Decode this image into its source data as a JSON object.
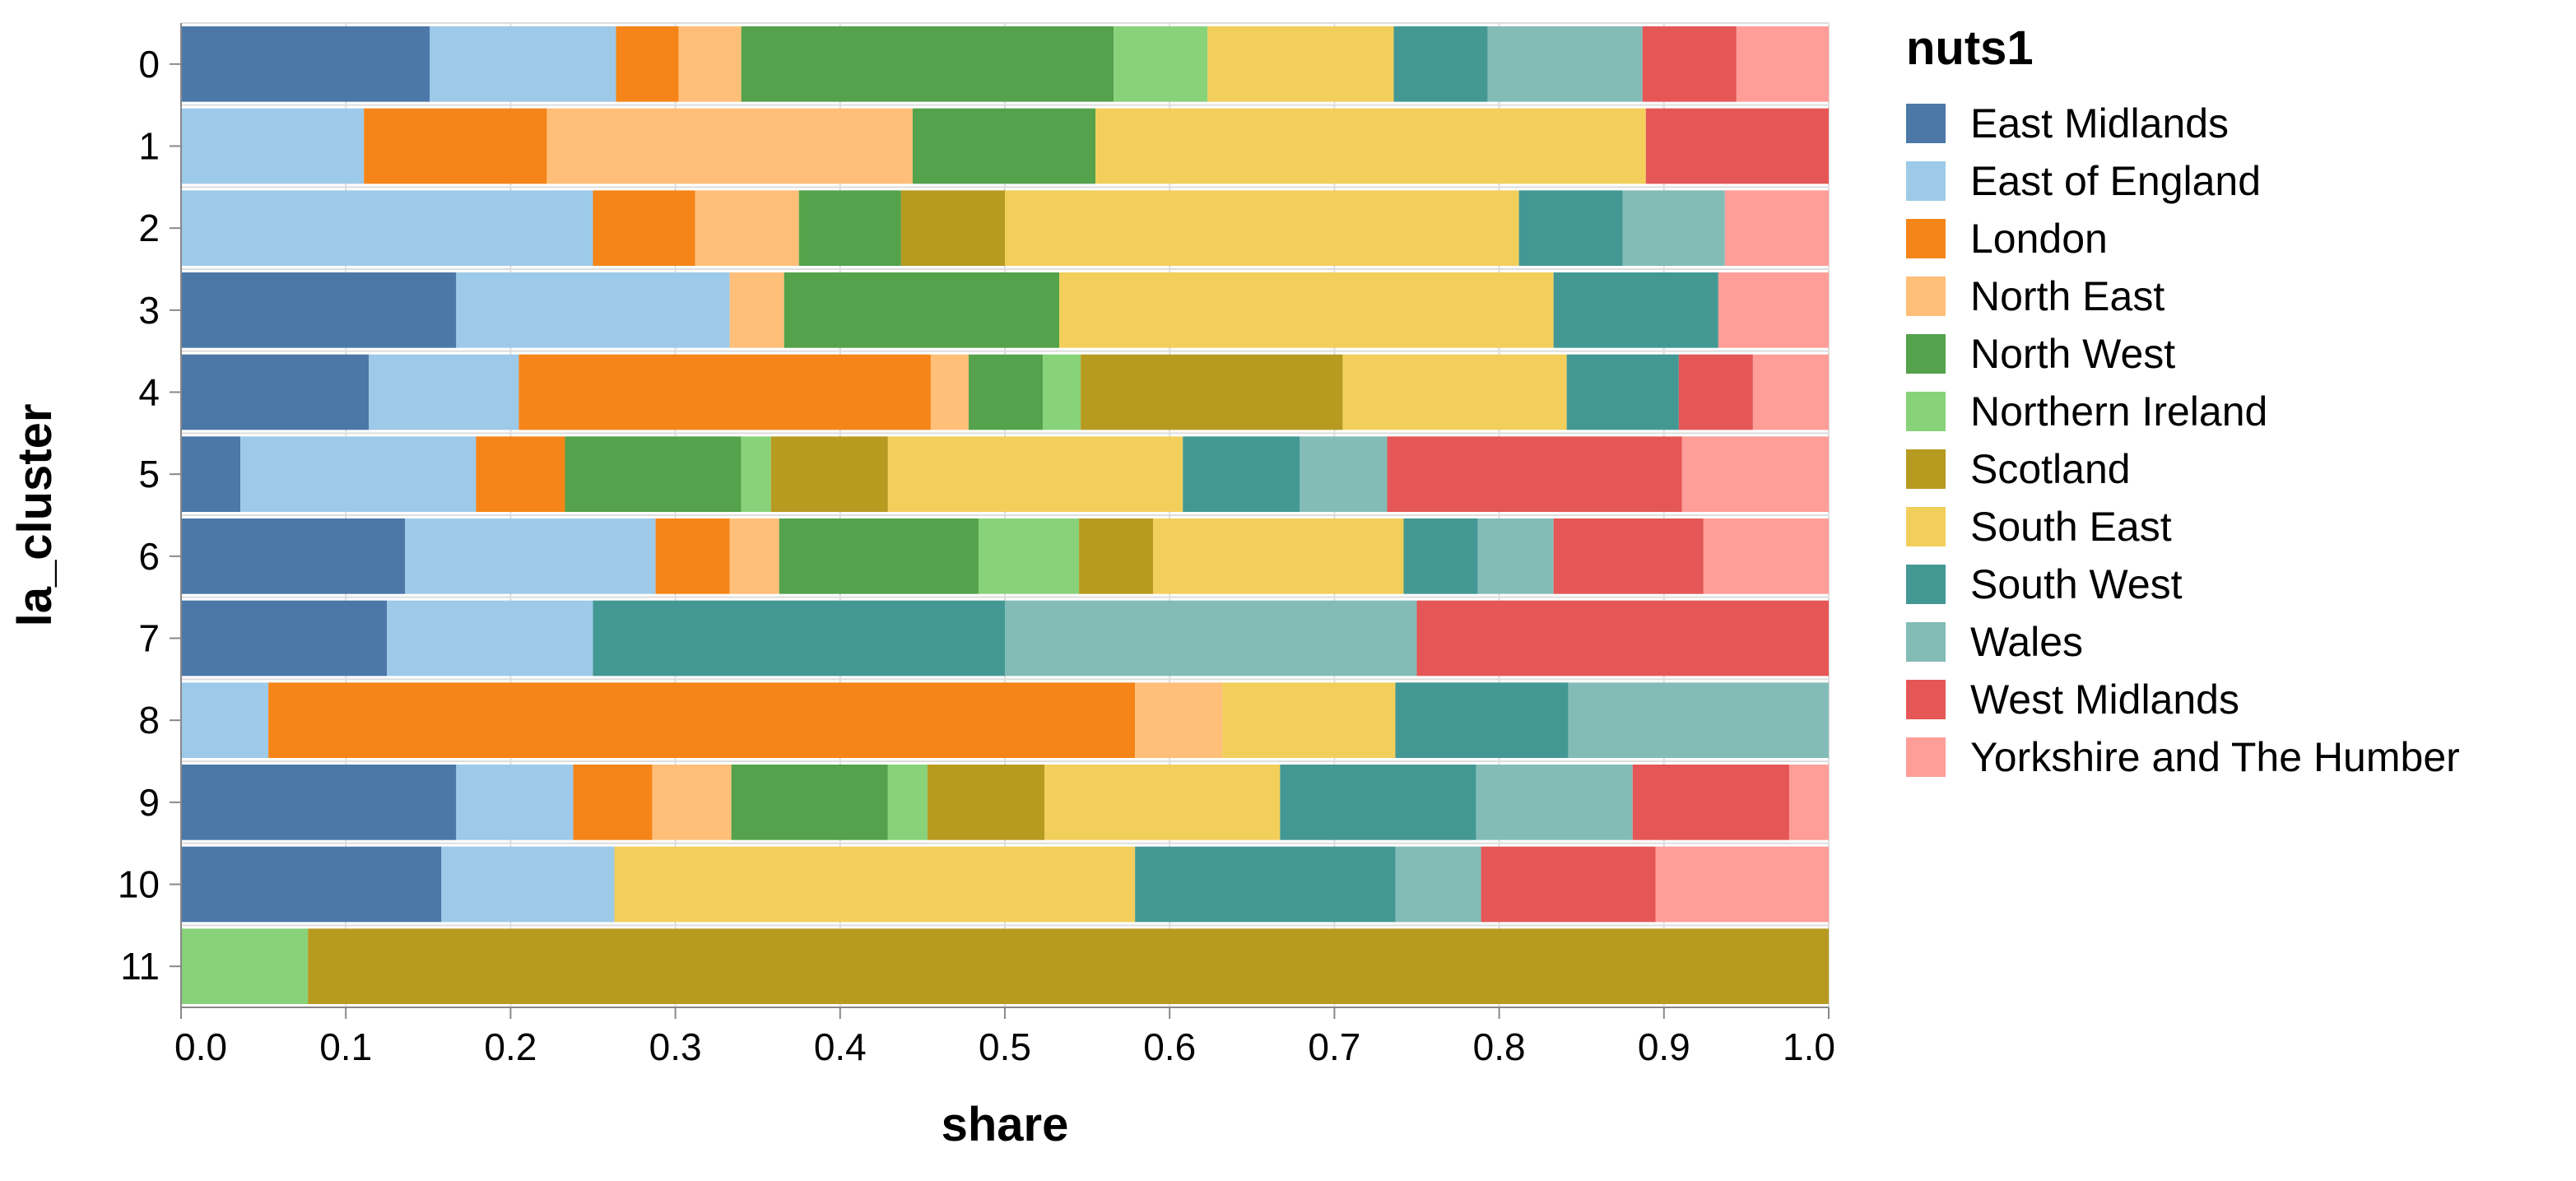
{
  "chart_data": {
    "type": "bar",
    "orientation": "horizontal",
    "stacked": true,
    "normalized": true,
    "xlabel": "share",
    "ylabel": "la_cluster",
    "xlim": [
      0,
      1
    ],
    "xticks": [
      "0.0",
      "0.1",
      "0.2",
      "0.3",
      "0.4",
      "0.5",
      "0.6",
      "0.7",
      "0.8",
      "0.9",
      "1.0"
    ],
    "grid": true,
    "categories": [
      "0",
      "1",
      "2",
      "3",
      "4",
      "5",
      "6",
      "7",
      "8",
      "9",
      "10",
      "11"
    ],
    "legend": {
      "title": "nuts1",
      "position": "right"
    },
    "series": [
      {
        "name": "East Midlands",
        "color": "#4c78a8",
        "values": [
          0.151,
          0,
          0,
          0.167,
          0.114,
          0.036,
          0.136,
          0.125,
          0,
          0.167,
          0.158,
          0
        ]
      },
      {
        "name": "East of England",
        "color": "#9ecae9",
        "values": [
          0.113,
          0.111,
          0.25,
          0.166,
          0.091,
          0.143,
          0.152,
          0.125,
          0.053,
          0.071,
          0.105,
          0
        ]
      },
      {
        "name": "London",
        "color": "#f58518",
        "values": [
          0.038,
          0.111,
          0.062,
          0,
          0.25,
          0.054,
          0.045,
          0,
          0.526,
          0.048,
          0,
          0
        ]
      },
      {
        "name": "North East",
        "color": "#ffbf79",
        "values": [
          0.038,
          0.222,
          0.063,
          0.033,
          0.023,
          0,
          0.03,
          0,
          0.053,
          0.048,
          0,
          0
        ]
      },
      {
        "name": "North West",
        "color": "#54a24b",
        "values": [
          0.226,
          0.111,
          0.062,
          0.167,
          0.045,
          0.107,
          0.121,
          0,
          0,
          0.095,
          0,
          0
        ]
      },
      {
        "name": "Northern Ireland",
        "color": "#88d27a",
        "values": [
          0.057,
          0,
          0,
          0,
          0.023,
          0.018,
          0.061,
          0,
          0,
          0.024,
          0,
          0.077
        ]
      },
      {
        "name": "Scotland",
        "color": "#b79a20",
        "values": [
          0,
          0,
          0.063,
          0,
          0.159,
          0.071,
          0.045,
          0,
          0,
          0.071,
          0,
          0.923
        ]
      },
      {
        "name": "South East",
        "color": "#f2cf5b",
        "values": [
          0.113,
          0.334,
          0.312,
          0.3,
          0.136,
          0.179,
          0.152,
          0,
          0.105,
          0.143,
          0.316,
          0
        ]
      },
      {
        "name": "South West",
        "color": "#439894",
        "values": [
          0.057,
          0,
          0.063,
          0.1,
          0.068,
          0.071,
          0.045,
          0.25,
          0.105,
          0.119,
          0.158,
          0
        ]
      },
      {
        "name": "Wales",
        "color": "#83bcb6",
        "values": [
          0.094,
          0,
          0.062,
          0,
          0,
          0.053,
          0.046,
          0.25,
          0.158,
          0.095,
          0.052,
          0
        ]
      },
      {
        "name": "West Midlands",
        "color": "#e45756",
        "values": [
          0.057,
          0.111,
          0,
          0,
          0.045,
          0.179,
          0.091,
          0.25,
          0,
          0.095,
          0.106,
          0
        ]
      },
      {
        "name": "Yorkshire and The Humber",
        "color": "#ff9d98",
        "values": [
          0.056,
          0,
          0.063,
          0.067,
          0.046,
          0.089,
          0.076,
          0,
          0,
          0.024,
          0.105,
          0
        ]
      }
    ]
  }
}
